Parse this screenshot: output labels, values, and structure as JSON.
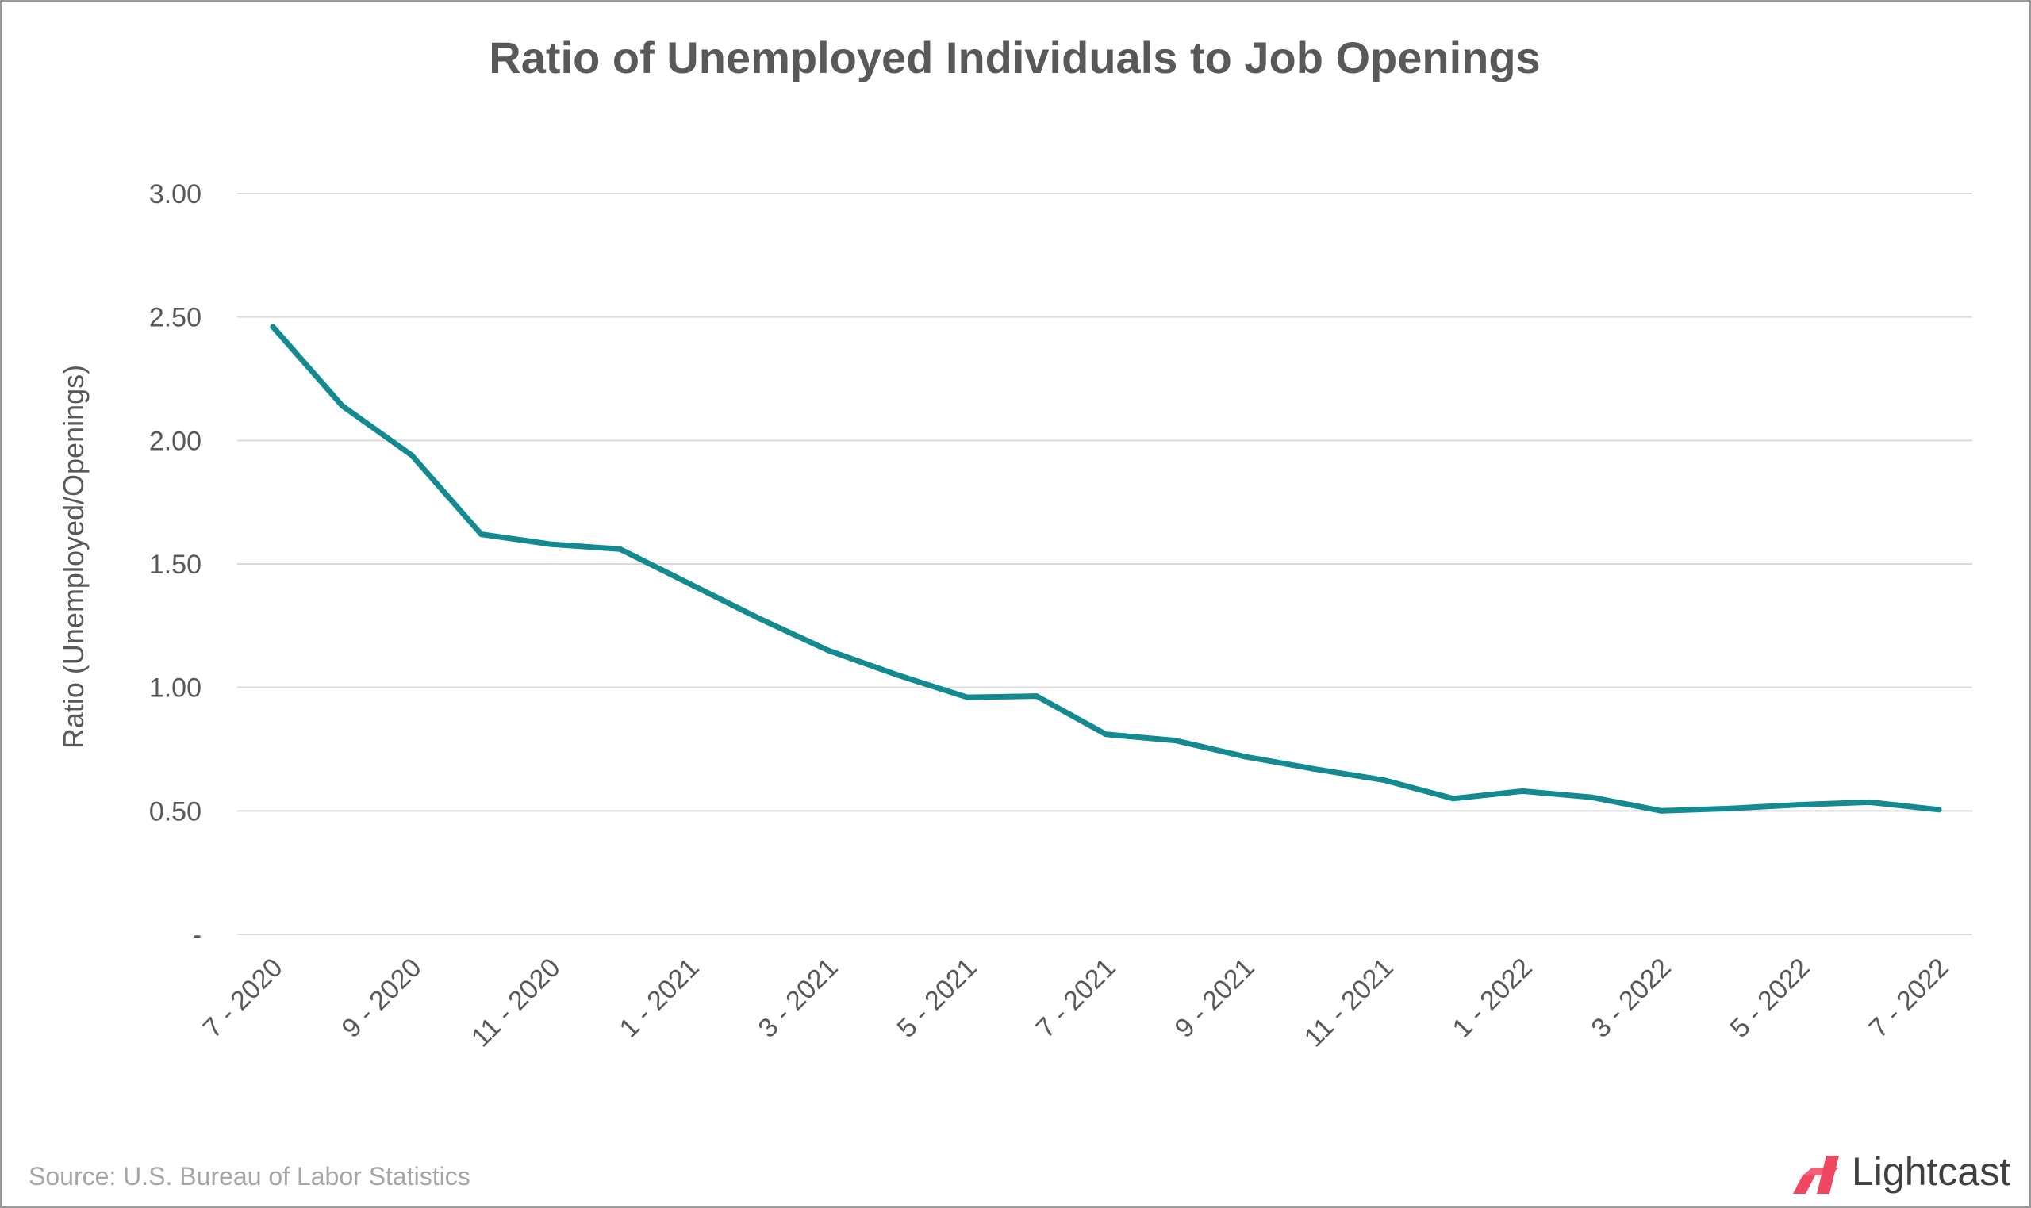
{
  "chart_data": {
    "type": "line",
    "title": "Ratio of Unemployed Individuals to Job Openings",
    "xlabel": "",
    "ylabel": "Ratio (Unemployed/Openings)",
    "ylim": [
      0,
      3
    ],
    "yticks": [
      {
        "value": 0,
        "label": "-"
      },
      {
        "value": 0.5,
        "label": "0.50"
      },
      {
        "value": 1.0,
        "label": "1.00"
      },
      {
        "value": 1.5,
        "label": "1.50"
      },
      {
        "value": 2.0,
        "label": "2.00"
      },
      {
        "value": 2.5,
        "label": "2.50"
      },
      {
        "value": 3.0,
        "label": "3.00"
      }
    ],
    "x": [
      "7 - 2020",
      "8 - 2020",
      "9 - 2020",
      "10 - 2020",
      "11 - 2020",
      "12 - 2020",
      "1 - 2021",
      "2 - 2021",
      "3 - 2021",
      "4 - 2021",
      "5 - 2021",
      "6 - 2021",
      "7 - 2021",
      "8 - 2021",
      "9 - 2021",
      "10 - 2021",
      "11 - 2021",
      "12 - 2021",
      "1 - 2022",
      "2 - 2022",
      "3 - 2022",
      "4 - 2022",
      "5 - 2022",
      "6 - 2022",
      "7 - 2022"
    ],
    "xtick_labels": [
      "7 - 2020",
      "9 - 2020",
      "11 - 2020",
      "1 - 2021",
      "3 - 2021",
      "5 - 2021",
      "7 - 2021",
      "9 - 2021",
      "11 - 2021",
      "1 - 2022",
      "3 - 2022",
      "5 - 2022",
      "7 - 2022"
    ],
    "series": [
      {
        "values": [
          2.46,
          2.14,
          1.94,
          1.62,
          1.58,
          1.56,
          1.42,
          1.28,
          1.15,
          1.05,
          0.96,
          0.965,
          0.81,
          0.785,
          0.72,
          0.67,
          0.625,
          0.55,
          0.58,
          0.555,
          0.5,
          0.51,
          0.525,
          0.535,
          0.505
        ],
        "color": "#138a8f"
      }
    ],
    "grid": true,
    "legend": "none"
  },
  "footer": {
    "source": "Source:  U.S. Bureau of Labor Statistics",
    "brand": "Lightcast",
    "brand_color": "#f0465f"
  }
}
